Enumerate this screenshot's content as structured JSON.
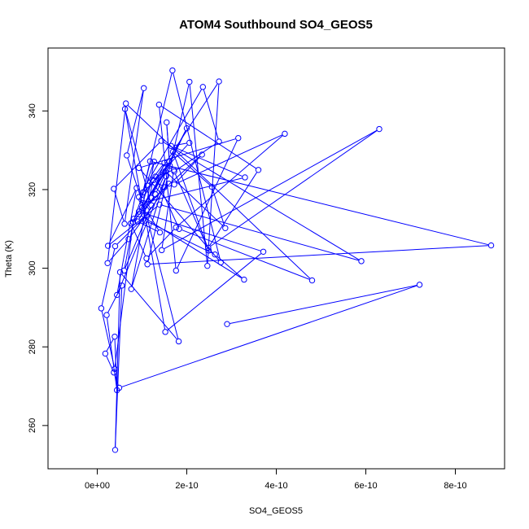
{
  "chart_data": {
    "type": "line",
    "title": "ATOM4 Southbound SO4_GEOS5",
    "xlabel": "SO4_GEOS5",
    "ylabel": "Theta (K)",
    "xlim": [
      -1.1e-10,
      9.1e-10
    ],
    "ylim": [
      249,
      356
    ],
    "x_ticks": [
      0,
      2e-10,
      4e-10,
      6e-10,
      8e-10
    ],
    "x_tick_labels": [
      "0e+00",
      "2e-10",
      "4e-10",
      "6e-10",
      "8e-10"
    ],
    "y_ticks": [
      260,
      280,
      300,
      320,
      340
    ],
    "y_tick_labels": [
      "260",
      "280",
      "300",
      "320",
      "340"
    ],
    "grid": false,
    "legend": "none",
    "series": [
      {
        "color": "#0000ff",
        "marker": "open-circle",
        "x": [
          2.9e-10,
          7.2e-10,
          4.9e-11,
          3.7e-11,
          1.8e-11,
          3.9e-11,
          4.4e-11,
          2.1e-11,
          5.5e-11,
          4e-11,
          5.1e-11,
          1.82e-10,
          1.1e-10,
          4e-11,
          9e-12,
          3.9e-11,
          8e-11,
          1.27e-10,
          7.6e-11,
          1.54e-10,
          4.4e-11,
          8.8e-11,
          2.4e-11,
          1.39e-10,
          5.9e-10,
          1.43e-10,
          3.7e-11,
          6.1e-11,
          1.04e-10,
          6.6e-11,
          9.9e-11,
          2.72e-10,
          2.46e-10,
          2.06e-10,
          1.12e-10,
          8.8e-10,
          1.18e-10,
          1.02e-10,
          1.68e-10,
          2.76e-10,
          9.3e-11,
          3.15e-10,
          1.76e-10,
          1.38e-10,
          3.6e-10,
          2.48e-10,
          6.3e-10,
          1.44e-10,
          1.71e-10,
          1.3e-10,
          1.83e-10,
          4.8e-10,
          6.4e-11,
          2.3e-11,
          7e-11,
          1.6e-10,
          7.5e-11,
          1.1e-10,
          1.76e-10,
          4.19e-10,
          1.72e-10,
          2.34e-10,
          9.3e-11,
          3.71e-10,
          1.52e-10,
          1.02e-10,
          3.3e-10,
          1.65e-10,
          2.06e-10,
          9.3e-11,
          2.36e-10,
          2.72e-10,
          1.72e-10,
          2.49e-10,
          1.69e-10,
          2.56e-10,
          2.86e-10,
          1.52e-10,
          8.2e-11,
          6e-11,
          1.21e-10,
          6.2e-11,
          1.07e-10,
          2.63e-10,
          3.28e-10,
          9.3e-11,
          1.61e-10,
          1.55e-10,
          1.62e-10,
          1e-10,
          1.12e-10,
          1.5e-10,
          1.2e-10,
          2e-10,
          1.3e-10,
          9e-11,
          1.4e-10,
          1.1e-10,
          1.25e-10,
          1.5e-10
        ],
        "y": [
          285.8,
          295.8,
          269.6,
          273.5,
          278.3,
          282.6,
          269.0,
          288.1,
          295.6,
          253.8,
          299.0,
          281.4,
          313.5,
          305.6,
          289.8,
          274.4,
          311.7,
          327.1,
          294.7,
          323.4,
          293.2,
          320.4,
          305.7,
          316.2,
          301.8,
          332.4,
          320.2,
          311.3,
          345.8,
          328.7,
          317.4,
          347.5,
          300.6,
          347.4,
          301.0,
          305.8,
          327.2,
          319.3,
          350.3,
          301.5,
          325.5,
          333.1,
          299.4,
          341.6,
          325.0,
          305.2,
          335.4,
          304.6,
          325.0,
          323.3,
          310.0,
          296.9,
          341.9,
          301.3,
          307.4,
          321.5,
          311.4,
          302.5,
          310.4,
          334.2,
          321.3,
          328.9,
          314.4,
          304.2,
          283.8,
          316.6,
          323.1,
          331.1,
          331.9,
          318.1,
          346.1,
          332.2,
          324.6,
          304.5,
          329.6,
          320.7,
          310.2,
          324.7,
          312.6,
          299.4,
          316.0,
          340.5,
          312.1,
          303.5,
          297.1,
          313.7,
          327.2,
          337.1,
          326.1,
          315.4,
          321.0,
          326.8,
          317.9,
          335.6,
          318.8,
          311.9,
          309.1,
          314.8,
          322.4,
          320.6
        ]
      }
    ]
  }
}
